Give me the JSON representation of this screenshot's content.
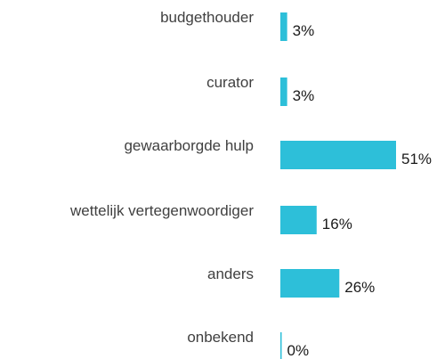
{
  "chart_data": {
    "type": "bar",
    "orientation": "horizontal",
    "categories": [
      "budgethouder",
      "curator",
      "gewaarborgde hulp",
      "wettelijk vertegenwoordiger",
      "anders",
      "onbekend"
    ],
    "values": [
      3,
      3,
      51,
      16,
      26,
      0
    ],
    "value_labels": [
      "3%",
      "3%",
      "51%",
      "16%",
      "26%",
      "0%"
    ],
    "bar_color": "#2dbfd9",
    "grid": false,
    "legend": "none"
  }
}
